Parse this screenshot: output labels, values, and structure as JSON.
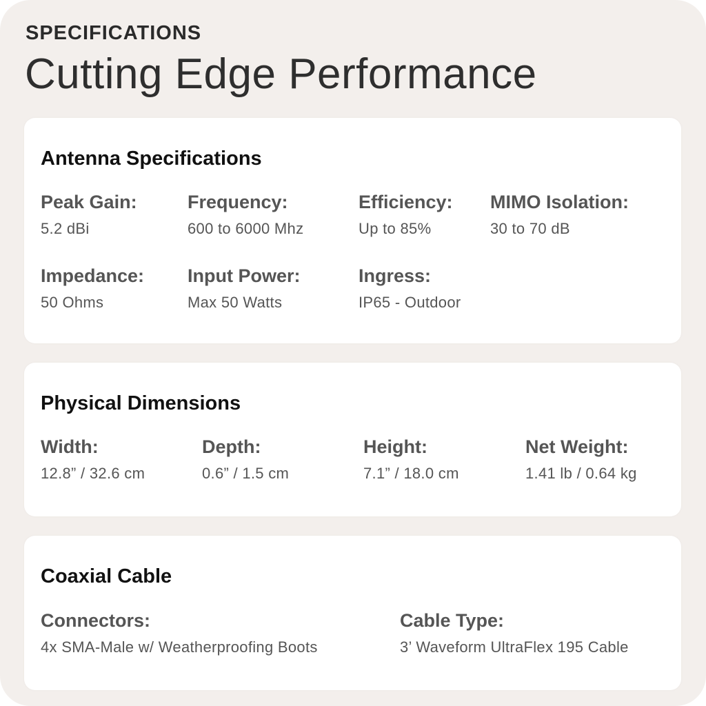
{
  "header": {
    "eyebrow": "SPECIFICATIONS",
    "title": "Cutting Edge Performance"
  },
  "sections": [
    {
      "title": "Antenna Specifications",
      "specs": [
        {
          "label": "Peak Gain:",
          "value": "5.2 dBi"
        },
        {
          "label": "Frequency:",
          "value": "600 to 6000 Mhz"
        },
        {
          "label": "Efficiency:",
          "value": "Up to 85%"
        },
        {
          "label": "MIMO Isolation:",
          "value": "30 to 70 dB"
        },
        {
          "label": "Impedance:",
          "value": "50 Ohms"
        },
        {
          "label": "Input Power:",
          "value": "Max 50 Watts"
        },
        {
          "label": "Ingress:",
          "value": "IP65 - Outdoor"
        }
      ]
    },
    {
      "title": "Physical Dimensions",
      "specs": [
        {
          "label": "Width:",
          "value": "12.8” / 32.6 cm"
        },
        {
          "label": "Depth:",
          "value": "0.6” / 1.5 cm"
        },
        {
          "label": "Height:",
          "value": "7.1” / 18.0 cm"
        },
        {
          "label": "Net Weight:",
          "value": "1.41 lb / 0.64 kg"
        }
      ]
    },
    {
      "title": "Coaxial Cable",
      "specs": [
        {
          "label": "Connectors:",
          "value": "4x SMA-Male w/ Weatherproofing Boots"
        },
        {
          "label": "Cable Type:",
          "value": "3’ Waveform UltraFlex 195 Cable"
        }
      ]
    }
  ]
}
